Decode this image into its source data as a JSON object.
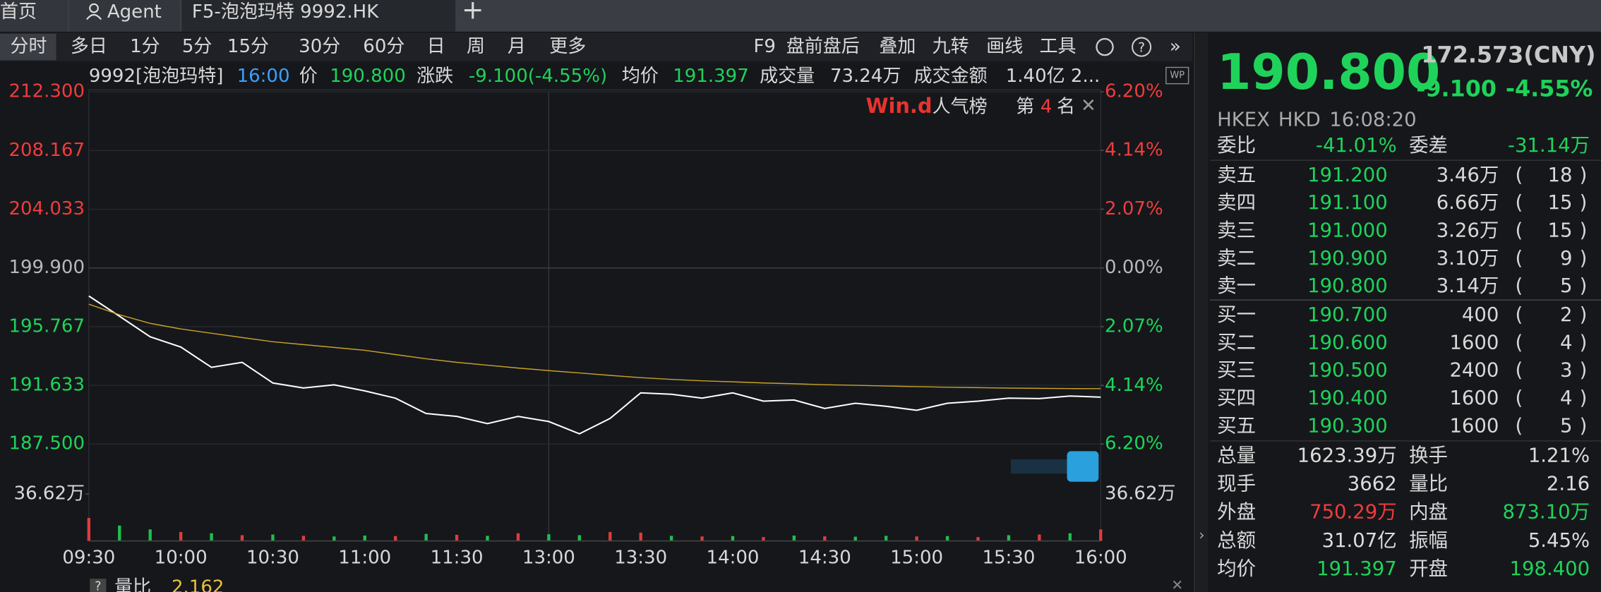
{
  "tabs": [
    "首页",
    "Agent",
    "F5-泡泡玛特 9992.HK"
  ],
  "toolbar": {
    "periods": [
      "分时",
      "多日",
      "1分",
      "5分",
      "15分",
      "30分",
      "60分",
      "日",
      "周",
      "月",
      "更多"
    ],
    "tools": [
      "F9",
      "盘前盘后",
      "叠加",
      "九转",
      "画线",
      "工具"
    ]
  },
  "info_bar": {
    "name": "9992[泡泡玛特]",
    "time": "16:00",
    "price": "190.800",
    "change_label": "涨跌",
    "change": "-9.100(-4.55%)",
    "avg": "191.397",
    "volume_label": "成交量",
    "volume": "73.24万",
    "amount_label": "成交金额",
    "amount": "1.40亿 2..."
  },
  "badge": {
    "brand": "Win.d",
    "title": "人气榜",
    "rank_prefix": "第",
    "rank": "4",
    "rank_suffix": "名"
  },
  "chart_data": [
    {
      "type": "line",
      "categories": [
        "09:30",
        null,
        null,
        "10:00",
        null,
        null,
        "10:30",
        null,
        null,
        "11:00",
        null,
        null,
        "11:30",
        null,
        null,
        "13:00",
        null,
        null,
        "13:30",
        null,
        null,
        "14:00",
        null,
        null,
        "14:30",
        null,
        null,
        "15:00",
        null,
        null,
        "15:30",
        null,
        null,
        "16:00"
      ],
      "series": [
        {
          "name": "价",
          "color": "#ffffff",
          "values": [
            197.92,
            196.5,
            195.05,
            194.33,
            192.9,
            193.25,
            191.8,
            191.45,
            191.67,
            191.24,
            190.73,
            189.65,
            189.44,
            188.94,
            189.44,
            189.08,
            188.22,
            189.3,
            191.1,
            191.0,
            190.73,
            191.1,
            190.52,
            190.6,
            190.0,
            190.37,
            190.16,
            189.87,
            190.37,
            190.52,
            190.73,
            190.7,
            190.88,
            190.8
          ]
        },
        {
          "name": "均价",
          "color": "#c9a227",
          "values": [
            197.35,
            196.6,
            196.0,
            195.6,
            195.3,
            195.0,
            194.7,
            194.5,
            194.3,
            194.1,
            193.8,
            193.5,
            193.25,
            193.05,
            192.85,
            192.67,
            192.5,
            192.33,
            192.17,
            192.05,
            191.95,
            191.88,
            191.8,
            191.74,
            191.68,
            191.63,
            191.58,
            191.54,
            191.5,
            191.47,
            191.44,
            191.42,
            191.4,
            191.397
          ]
        }
      ],
      "ylim": [
        187.5,
        212.3
      ],
      "yticks": [
        {
          "value": 212.3,
          "label": "212.300"
        },
        {
          "value": 208.167,
          "label": "208.167"
        },
        {
          "value": 204.033,
          "label": "204.033"
        },
        {
          "value": 199.9,
          "label": "199.900"
        },
        {
          "value": 195.767,
          "label": "195.767"
        },
        {
          "value": 191.633,
          "label": "191.633"
        },
        {
          "value": 187.5,
          "label": "187.500"
        }
      ],
      "y2lim": [
        -6.2,
        6.2
      ],
      "y2ticks": [
        {
          "value": 6.2,
          "label": "6.20%"
        },
        {
          "value": 4.14,
          "label": "4.14%"
        },
        {
          "value": 2.07,
          "label": "2.07%"
        },
        {
          "value": 0,
          "label": "0.00%"
        },
        {
          "value": -2.07,
          "label": "2.07%"
        },
        {
          "value": -4.14,
          "label": "4.14%"
        },
        {
          "value": -6.2,
          "label": "6.20%"
        }
      ],
      "grid": true
    },
    {
      "type": "bar",
      "values": [
        180000,
        120000,
        90000,
        70000,
        60000,
        45000,
        50000,
        40000,
        35000,
        42000,
        38000,
        55000,
        48000,
        40000,
        60000,
        52000,
        45000,
        70000,
        65000,
        40000,
        35000,
        38000,
        30000,
        42000,
        36000,
        33000,
        40000,
        35000,
        38000,
        30000,
        45000,
        50000,
        60000,
        90000
      ],
      "colors": [
        "#e03c3c",
        "#1fbf4f",
        "#1fbf4f",
        "#e03c3c",
        "#1fbf4f",
        "#e03c3c",
        "#1fbf4f",
        "#e03c3c",
        "#1fbf4f",
        "#1fbf4f",
        "#e03c3c",
        "#1fbf4f",
        "#e03c3c",
        "#1fbf4f",
        "#e03c3c",
        "#1fbf4f",
        "#1fbf4f",
        "#e03c3c",
        "#e03c3c",
        "#1fbf4f",
        "#e03c3c",
        "#1fbf4f",
        "#e03c3c",
        "#1fbf4f",
        "#e03c3c",
        "#1fbf4f",
        "#1fbf4f",
        "#e03c3c",
        "#1fbf4f",
        "#e03c3c",
        "#1fbf4f",
        "#e03c3c",
        "#1fbf4f",
        "#e03c3c"
      ],
      "ylim": [
        0,
        366200
      ],
      "yticks": [
        {
          "value": 366200,
          "label": "36.62万"
        }
      ]
    }
  ],
  "sub_indicator": {
    "label": "量比",
    "value": "2.162"
  },
  "quote": {
    "price": "190.800",
    "ref": "172.573(CNY)",
    "change": "-9.100",
    "change_pct": "-4.55%",
    "exchange": "HKEX",
    "currency": "HKD",
    "time": "16:08:20",
    "ratio_label": "委比",
    "ratio": "-41.01%",
    "diff_label": "委差",
    "diff": "-31.14万",
    "asks": [
      [
        "卖五",
        "191.200",
        "3.46万",
        "18"
      ],
      [
        "卖四",
        "191.100",
        "6.66万",
        "15"
      ],
      [
        "卖三",
        "191.000",
        "3.26万",
        "15"
      ],
      [
        "卖二",
        "190.900",
        "3.10万",
        "9"
      ],
      [
        "卖一",
        "190.800",
        "3.14万",
        "5"
      ]
    ],
    "bids": [
      [
        "买一",
        "190.700",
        "400",
        "2"
      ],
      [
        "买二",
        "190.600",
        "1600",
        "4"
      ],
      [
        "买三",
        "190.500",
        "2400",
        "3"
      ],
      [
        "买四",
        "190.400",
        "1600",
        "4"
      ],
      [
        "买五",
        "190.300",
        "1600",
        "5"
      ]
    ],
    "stats": [
      [
        "总量",
        "1623.39万",
        "换手",
        "1.21%"
      ],
      [
        "现手",
        "3662",
        "量比",
        "2.16"
      ],
      [
        "外盘",
        "750.29万",
        "内盘",
        "873.10万"
      ],
      [
        "总额",
        "31.07亿",
        "振幅",
        "5.45%"
      ],
      [
        "均价",
        "191.397",
        "开盘",
        "198.400"
      ]
    ]
  }
}
